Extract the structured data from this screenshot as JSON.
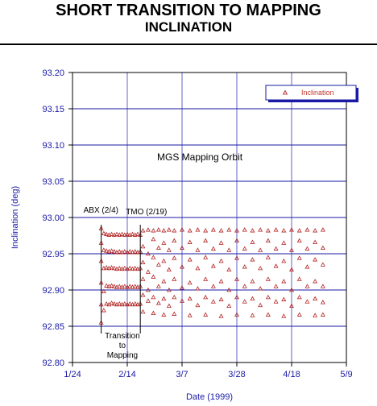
{
  "chart_data": {
    "type": "scatter",
    "title": "SHORT TRANSITION TO MAPPING",
    "subtitle": "INCLINATION",
    "xlabel": "Date (1999)",
    "ylabel": "Inclination (deg)",
    "x_tick_labels": [
      "1/24",
      "2/14",
      "3/7",
      "3/28",
      "4/18",
      "5/9"
    ],
    "y_tick_labels": [
      "92.80",
      "92.85",
      "92.90",
      "92.95",
      "93.00",
      "93.05",
      "93.10",
      "93.15",
      "93.20"
    ],
    "xlim": [
      "1999-01-24",
      "1999-05-09"
    ],
    "ylim": [
      92.8,
      93.2
    ],
    "grid": true,
    "legend_position": "top-right",
    "series": [
      {
        "name": "Inclination",
        "marker": "triangle-open",
        "color": "#b22222",
        "points": [
          [
            "1999-02-04",
            92.985
          ],
          [
            "1999-02-04",
            92.965
          ],
          [
            "1999-02-04",
            92.94
          ],
          [
            "1999-02-04",
            92.91
          ],
          [
            "1999-02-04",
            92.88
          ],
          [
            "1999-02-04",
            92.855
          ],
          [
            "1999-02-05",
            92.978
          ],
          [
            "1999-02-05",
            92.955
          ],
          [
            "1999-02-05",
            92.93
          ],
          [
            "1999-02-05",
            92.898
          ],
          [
            "1999-02-05",
            92.872
          ],
          [
            "1999-02-06",
            92.977
          ],
          [
            "1999-02-06",
            92.954
          ],
          [
            "1999-02-06",
            92.931
          ],
          [
            "1999-02-06",
            92.906
          ],
          [
            "1999-02-06",
            92.881
          ],
          [
            "1999-02-07",
            92.976
          ],
          [
            "1999-02-07",
            92.953
          ],
          [
            "1999-02-07",
            92.93
          ],
          [
            "1999-02-07",
            92.905
          ],
          [
            "1999-02-07",
            92.88
          ],
          [
            "1999-02-08",
            92.977
          ],
          [
            "1999-02-08",
            92.954
          ],
          [
            "1999-02-08",
            92.931
          ],
          [
            "1999-02-08",
            92.906
          ],
          [
            "1999-02-08",
            92.882
          ],
          [
            "1999-02-09",
            92.976
          ],
          [
            "1999-02-09",
            92.953
          ],
          [
            "1999-02-09",
            92.93
          ],
          [
            "1999-02-09",
            92.905
          ],
          [
            "1999-02-09",
            92.881
          ],
          [
            "1999-02-10",
            92.977
          ],
          [
            "1999-02-10",
            92.952
          ],
          [
            "1999-02-10",
            92.929
          ],
          [
            "1999-02-10",
            92.904
          ],
          [
            "1999-02-10",
            92.88
          ],
          [
            "1999-02-11",
            92.976
          ],
          [
            "1999-02-11",
            92.953
          ],
          [
            "1999-02-11",
            92.93
          ],
          [
            "1999-02-11",
            92.905
          ],
          [
            "1999-02-11",
            92.881
          ],
          [
            "1999-02-12",
            92.977
          ],
          [
            "1999-02-12",
            92.952
          ],
          [
            "1999-02-12",
            92.929
          ],
          [
            "1999-02-12",
            92.904
          ],
          [
            "1999-02-12",
            92.88
          ],
          [
            "1999-02-13",
            92.976
          ],
          [
            "1999-02-13",
            92.953
          ],
          [
            "1999-02-13",
            92.93
          ],
          [
            "1999-02-13",
            92.905
          ],
          [
            "1999-02-13",
            92.881
          ],
          [
            "1999-02-14",
            92.977
          ],
          [
            "1999-02-14",
            92.952
          ],
          [
            "1999-02-14",
            92.929
          ],
          [
            "1999-02-14",
            92.904
          ],
          [
            "1999-02-14",
            92.88
          ],
          [
            "1999-02-15",
            92.976
          ],
          [
            "1999-02-15",
            92.953
          ],
          [
            "1999-02-15",
            92.93
          ],
          [
            "1999-02-15",
            92.905
          ],
          [
            "1999-02-15",
            92.881
          ],
          [
            "1999-02-16",
            92.977
          ],
          [
            "1999-02-16",
            92.952
          ],
          [
            "1999-02-16",
            92.929
          ],
          [
            "1999-02-16",
            92.904
          ],
          [
            "1999-02-16",
            92.88
          ],
          [
            "1999-02-17",
            92.976
          ],
          [
            "1999-02-17",
            92.953
          ],
          [
            "1999-02-17",
            92.93
          ],
          [
            "1999-02-17",
            92.905
          ],
          [
            "1999-02-17",
            92.881
          ],
          [
            "1999-02-18",
            92.977
          ],
          [
            "1999-02-18",
            92.952
          ],
          [
            "1999-02-18",
            92.929
          ],
          [
            "1999-02-18",
            92.904
          ],
          [
            "1999-02-18",
            92.88
          ],
          [
            "1999-02-19",
            92.976
          ],
          [
            "1999-02-19",
            92.953
          ],
          [
            "1999-02-19",
            92.93
          ],
          [
            "1999-02-19",
            92.905
          ],
          [
            "1999-02-19",
            92.881
          ],
          [
            "1999-02-20",
            92.982
          ],
          [
            "1999-02-20",
            92.96
          ],
          [
            "1999-02-20",
            92.938
          ],
          [
            "1999-02-20",
            92.915
          ],
          [
            "1999-02-20",
            92.893
          ],
          [
            "1999-02-20",
            92.87
          ],
          [
            "1999-02-22",
            92.983
          ],
          [
            "1999-02-22",
            92.95
          ],
          [
            "1999-02-22",
            92.925
          ],
          [
            "1999-02-22",
            92.9
          ],
          [
            "1999-02-22",
            92.885
          ],
          [
            "1999-02-24",
            92.982
          ],
          [
            "1999-02-24",
            92.97
          ],
          [
            "1999-02-24",
            92.945
          ],
          [
            "1999-02-24",
            92.918
          ],
          [
            "1999-02-24",
            92.89
          ],
          [
            "1999-02-24",
            92.868
          ],
          [
            "1999-02-26",
            92.983
          ],
          [
            "1999-02-26",
            92.958
          ],
          [
            "1999-02-26",
            92.935
          ],
          [
            "1999-02-26",
            92.905
          ],
          [
            "1999-02-26",
            92.882
          ],
          [
            "1999-02-28",
            92.982
          ],
          [
            "1999-02-28",
            92.965
          ],
          [
            "1999-02-28",
            92.94
          ],
          [
            "1999-02-28",
            92.912
          ],
          [
            "1999-02-28",
            92.888
          ],
          [
            "1999-02-28",
            92.866
          ],
          [
            "1999-03-02",
            92.983
          ],
          [
            "1999-03-02",
            92.955
          ],
          [
            "1999-03-02",
            92.928
          ],
          [
            "1999-03-02",
            92.9
          ],
          [
            "1999-03-02",
            92.878
          ],
          [
            "1999-03-04",
            92.982
          ],
          [
            "1999-03-04",
            92.968
          ],
          [
            "1999-03-04",
            92.944
          ],
          [
            "1999-03-04",
            92.915
          ],
          [
            "1999-03-04",
            92.89
          ],
          [
            "1999-03-04",
            92.867
          ],
          [
            "1999-03-07",
            92.983
          ],
          [
            "1999-03-07",
            92.958
          ],
          [
            "1999-03-07",
            92.932
          ],
          [
            "1999-03-07",
            92.903
          ],
          [
            "1999-03-07",
            92.885
          ],
          [
            "1999-03-10",
            92.982
          ],
          [
            "1999-03-10",
            92.966
          ],
          [
            "1999-03-10",
            92.942
          ],
          [
            "1999-03-10",
            92.91
          ],
          [
            "1999-03-10",
            92.888
          ],
          [
            "1999-03-10",
            92.865
          ],
          [
            "1999-03-13",
            92.983
          ],
          [
            "1999-03-13",
            92.955
          ],
          [
            "1999-03-13",
            92.93
          ],
          [
            "1999-03-13",
            92.902
          ],
          [
            "1999-03-13",
            92.879
          ],
          [
            "1999-03-16",
            92.982
          ],
          [
            "1999-03-16",
            92.968
          ],
          [
            "1999-03-16",
            92.945
          ],
          [
            "1999-03-16",
            92.915
          ],
          [
            "1999-03-16",
            92.89
          ],
          [
            "1999-03-16",
            92.866
          ],
          [
            "1999-03-19",
            92.983
          ],
          [
            "1999-03-19",
            92.957
          ],
          [
            "1999-03-19",
            92.933
          ],
          [
            "1999-03-19",
            92.905
          ],
          [
            "1999-03-19",
            92.884
          ],
          [
            "1999-03-22",
            92.982
          ],
          [
            "1999-03-22",
            92.965
          ],
          [
            "1999-03-22",
            92.94
          ],
          [
            "1999-03-22",
            92.912
          ],
          [
            "1999-03-22",
            92.887
          ],
          [
            "1999-03-22",
            92.864
          ],
          [
            "1999-03-25",
            92.983
          ],
          [
            "1999-03-25",
            92.955
          ],
          [
            "1999-03-25",
            92.928
          ],
          [
            "1999-03-25",
            92.9
          ],
          [
            "1999-03-25",
            92.878
          ],
          [
            "1999-03-28",
            92.982
          ],
          [
            "1999-03-28",
            92.968
          ],
          [
            "1999-03-28",
            92.944
          ],
          [
            "1999-03-28",
            92.915
          ],
          [
            "1999-03-28",
            92.89
          ],
          [
            "1999-03-28",
            92.866
          ],
          [
            "1999-03-31",
            92.983
          ],
          [
            "1999-03-31",
            92.957
          ],
          [
            "1999-03-31",
            92.932
          ],
          [
            "1999-03-31",
            92.905
          ],
          [
            "1999-03-31",
            92.884
          ],
          [
            "1999-04-03",
            92.982
          ],
          [
            "1999-04-03",
            92.966
          ],
          [
            "1999-04-03",
            92.942
          ],
          [
            "1999-04-03",
            92.912
          ],
          [
            "1999-04-03",
            92.888
          ],
          [
            "1999-04-03",
            92.865
          ],
          [
            "1999-04-06",
            92.983
          ],
          [
            "1999-04-06",
            92.955
          ],
          [
            "1999-04-06",
            92.93
          ],
          [
            "1999-04-06",
            92.902
          ],
          [
            "1999-04-06",
            92.879
          ],
          [
            "1999-04-09",
            92.982
          ],
          [
            "1999-04-09",
            92.968
          ],
          [
            "1999-04-09",
            92.945
          ],
          [
            "1999-04-09",
            92.915
          ],
          [
            "1999-04-09",
            92.89
          ],
          [
            "1999-04-09",
            92.866
          ],
          [
            "1999-04-12",
            92.983
          ],
          [
            "1999-04-12",
            92.957
          ],
          [
            "1999-04-12",
            92.933
          ],
          [
            "1999-04-12",
            92.905
          ],
          [
            "1999-04-12",
            92.884
          ],
          [
            "1999-04-15",
            92.982
          ],
          [
            "1999-04-15",
            92.965
          ],
          [
            "1999-04-15",
            92.94
          ],
          [
            "1999-04-15",
            92.912
          ],
          [
            "1999-04-15",
            92.887
          ],
          [
            "1999-04-15",
            92.864
          ],
          [
            "1999-04-18",
            92.983
          ],
          [
            "1999-04-18",
            92.955
          ],
          [
            "1999-04-18",
            92.928
          ],
          [
            "1999-04-18",
            92.9
          ],
          [
            "1999-04-18",
            92.878
          ],
          [
            "1999-04-21",
            92.982
          ],
          [
            "1999-04-21",
            92.968
          ],
          [
            "1999-04-21",
            92.944
          ],
          [
            "1999-04-21",
            92.915
          ],
          [
            "1999-04-21",
            92.89
          ],
          [
            "1999-04-21",
            92.866
          ],
          [
            "1999-04-24",
            92.983
          ],
          [
            "1999-04-24",
            92.957
          ],
          [
            "1999-04-24",
            92.932
          ],
          [
            "1999-04-24",
            92.905
          ],
          [
            "1999-04-24",
            92.884
          ],
          [
            "1999-04-27",
            92.982
          ],
          [
            "1999-04-27",
            92.966
          ],
          [
            "1999-04-27",
            92.942
          ],
          [
            "1999-04-27",
            92.912
          ],
          [
            "1999-04-27",
            92.888
          ],
          [
            "1999-04-27",
            92.865
          ],
          [
            "1999-04-30",
            92.983
          ],
          [
            "1999-04-30",
            92.958
          ],
          [
            "1999-04-30",
            92.935
          ],
          [
            "1999-04-30",
            92.905
          ],
          [
            "1999-04-30",
            92.883
          ],
          [
            "1999-04-30",
            92.866
          ]
        ]
      }
    ],
    "annotations": {
      "abx": "ABX (2/4)",
      "tmo": "TMO (2/19)",
      "mapping_orbit": "MGS Mapping Orbit",
      "transition_line1": "Transition",
      "transition_line2": "to",
      "transition_line3": "Mapping"
    },
    "event_markers": [
      {
        "date": "1999-02-04",
        "label": "ABX (2/4)"
      },
      {
        "date": "1999-02-19",
        "label": "TMO (2/19)"
      }
    ]
  }
}
